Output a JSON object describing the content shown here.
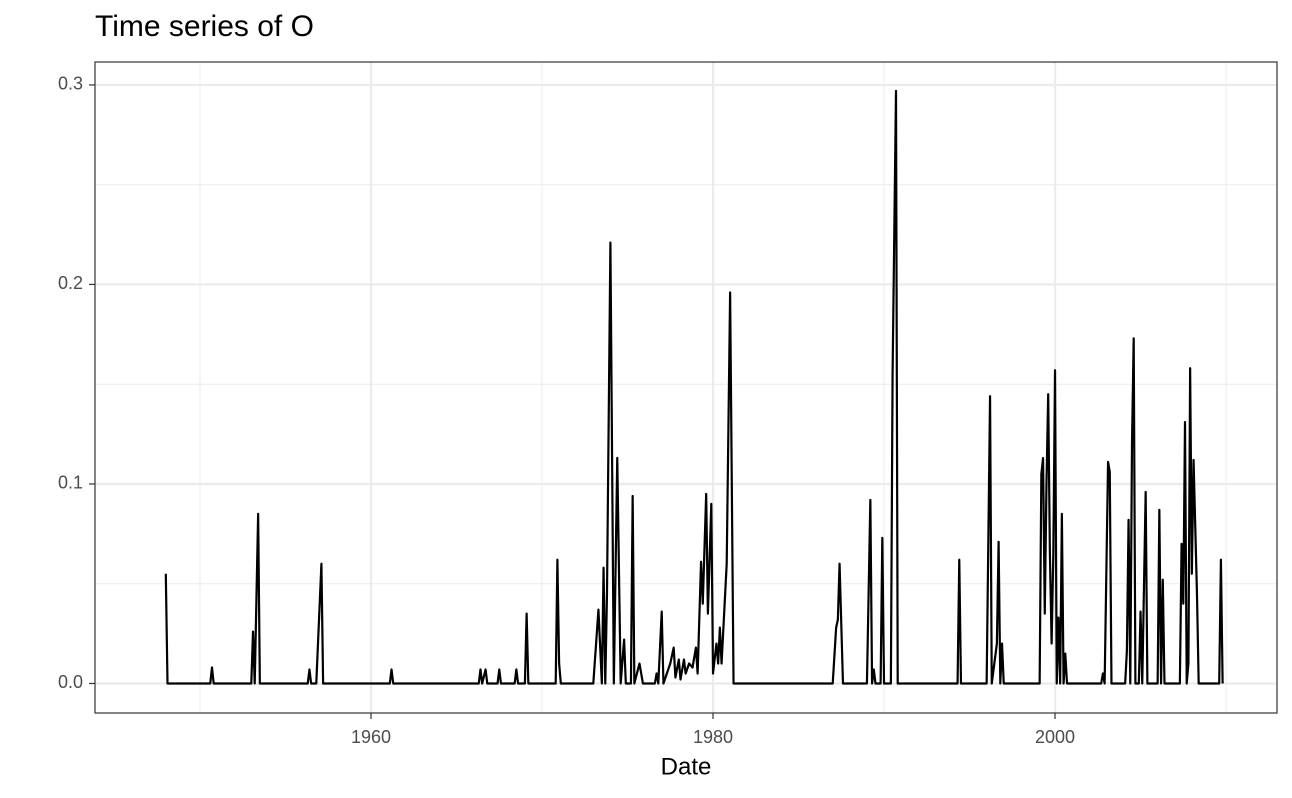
{
  "chart_data": {
    "type": "line",
    "title": "Time series of O",
    "x_label": "Date",
    "x": [
      1948.0,
      1948.1,
      1950.6,
      1950.7,
      1950.8,
      1953.0,
      1953.1,
      1953.2,
      1953.4,
      1953.5,
      1956.3,
      1956.4,
      1956.5,
      1956.8,
      1957.1,
      1957.2,
      1961.1,
      1961.2,
      1961.3,
      1966.3,
      1966.4,
      1966.5,
      1966.7,
      1966.8,
      1967.4,
      1967.5,
      1967.6,
      1968.4,
      1968.5,
      1968.6,
      1969.0,
      1969.1,
      1969.2,
      1970.8,
      1970.9,
      1971.0,
      1971.1,
      1973.0,
      1973.3,
      1973.5,
      1973.6,
      1973.7,
      1973.8,
      1974.0,
      1974.2,
      1974.4,
      1974.6,
      1974.8,
      1974.9,
      1975.2,
      1975.3,
      1975.4,
      1975.7,
      1975.9,
      1976.6,
      1976.7,
      1976.8,
      1977.0,
      1977.1,
      1977.5,
      1977.7,
      1977.8,
      1978.0,
      1978.1,
      1978.3,
      1978.4,
      1978.6,
      1978.8,
      1979.0,
      1979.1,
      1979.3,
      1979.4,
      1979.6,
      1979.7,
      1979.9,
      1980.0,
      1980.2,
      1980.3,
      1980.4,
      1980.5,
      1980.8,
      1981.0,
      1981.2,
      1987.0,
      1987.2,
      1987.3,
      1987.4,
      1987.6,
      1989.0,
      1989.2,
      1989.3,
      1989.4,
      1989.5,
      1989.8,
      1989.9,
      1990.0,
      1990.4,
      1990.5,
      1990.7,
      1990.8,
      1994.3,
      1994.4,
      1994.5,
      1996.0,
      1996.2,
      1996.3,
      1996.6,
      1996.7,
      1996.8,
      1996.9,
      1997.0,
      1999.1,
      1999.2,
      1999.3,
      1999.4,
      1999.5,
      1999.6,
      1999.7,
      1999.8,
      1999.9,
      2000.0,
      2000.1,
      2000.2,
      2000.3,
      2000.4,
      2000.5,
      2000.6,
      2000.7,
      2002.7,
      2002.8,
      2002.9,
      2003.1,
      2003.2,
      2003.3,
      2004.1,
      2004.2,
      2004.3,
      2004.4,
      2004.5,
      2004.6,
      2004.7,
      2004.9,
      2005.0,
      2005.1,
      2005.3,
      2005.4,
      2006.0,
      2006.1,
      2006.2,
      2006.3,
      2006.4,
      2007.3,
      2007.4,
      2007.5,
      2007.6,
      2007.7,
      2007.8,
      2007.9,
      2008.0,
      2008.1,
      2008.3,
      2008.4,
      2009.6,
      2009.7,
      2009.8
    ],
    "values": [
      0.055,
      0,
      0,
      0.008,
      0,
      0,
      0.026,
      0,
      0.085,
      0,
      0,
      0.007,
      0,
      0,
      0.06,
      0,
      0,
      0.007,
      0,
      0,
      0.007,
      0,
      0.007,
      0,
      0,
      0.007,
      0,
      0,
      0.007,
      0,
      0,
      0.035,
      0,
      0,
      0.062,
      0.01,
      0,
      0,
      0.037,
      0,
      0.058,
      0,
      0.045,
      0.221,
      0,
      0.113,
      0,
      0.022,
      0,
      0,
      0.094,
      0,
      0.01,
      0,
      0,
      0.005,
      0,
      0.036,
      0,
      0.01,
      0.018,
      0.003,
      0.012,
      0.002,
      0.012,
      0.005,
      0.01,
      0.008,
      0.018,
      0.005,
      0.061,
      0.04,
      0.095,
      0.035,
      0.09,
      0.005,
      0.02,
      0.01,
      0.028,
      0.01,
      0.06,
      0.196,
      0,
      0,
      0.028,
      0.032,
      0.06,
      0,
      0,
      0.092,
      0,
      0.007,
      0,
      0,
      0.073,
      0,
      0,
      0.155,
      0.297,
      0,
      0,
      0.062,
      0,
      0,
      0.144,
      0,
      0.02,
      0.071,
      0,
      0.02,
      0,
      0,
      0.105,
      0.113,
      0.035,
      0.1,
      0.145,
      0.065,
      0.02,
      0.065,
      0.157,
      0,
      0.033,
      0,
      0.085,
      0,
      0.015,
      0,
      0,
      0.005,
      0,
      0.111,
      0.106,
      0,
      0,
      0.016,
      0.082,
      0,
      0.12,
      0.173,
      0,
      0,
      0.036,
      0,
      0.096,
      0,
      0,
      0.087,
      0,
      0.052,
      0,
      0,
      0.07,
      0.04,
      0.131,
      0,
      0.01,
      0.158,
      0.055,
      0.112,
      0.045,
      0,
      0,
      0.062,
      0
    ],
    "color": "#000000",
    "xlim": [
      1943.86,
      2012.98
    ],
    "xticks": [
      1960,
      1980,
      2000
    ],
    "x_minor_ticks": [
      1950,
      1970,
      1990,
      2010
    ],
    "ylim": [
      -0.0148,
      0.3115
    ],
    "yticks": [
      {
        "value": 0,
        "label": "0.0"
      },
      0.1,
      0.2,
      0.3
    ],
    "y_minor_ticks": [
      0.05,
      0.15,
      0.25
    ],
    "grid": true
  }
}
